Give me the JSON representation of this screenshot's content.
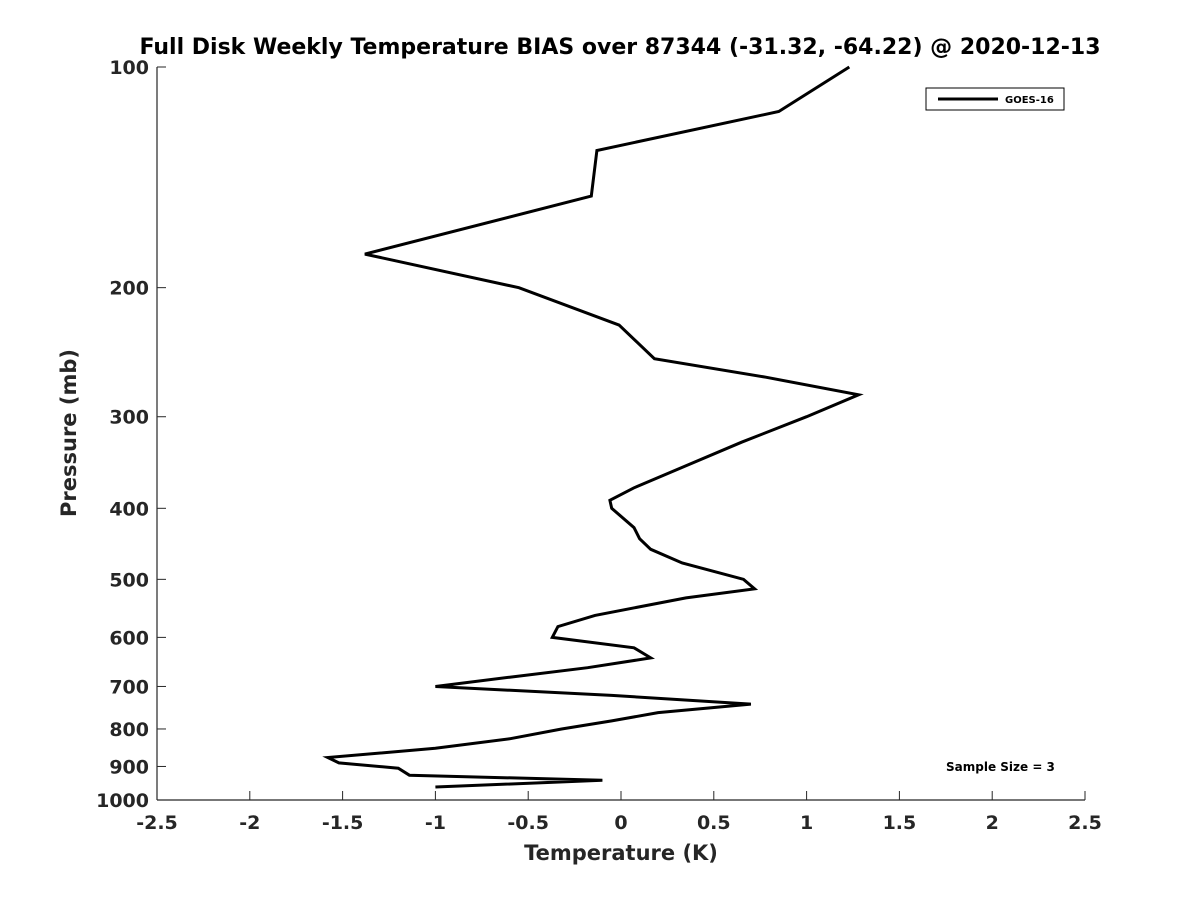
{
  "chart_data": {
    "type": "line",
    "title": "Full Disk Weekly Temperature BIAS over 87344 (-31.32, -64.22) @ 2020-12-13",
    "xlabel": "Temperature (K)",
    "ylabel": "Pressure (mb)",
    "xlim": [
      -2.5,
      2.5
    ],
    "ylim": [
      100,
      1000
    ],
    "yscale": "log",
    "yreversed": true,
    "grid": false,
    "x_ticks": [
      -2.5,
      -2,
      -1.5,
      -1,
      -0.5,
      0,
      0.5,
      1,
      1.5,
      2,
      2.5
    ],
    "x_tick_labels": [
      "-2.5",
      "-2",
      "-1.5",
      "-1",
      "-0.5",
      "0",
      "0.5",
      "1",
      "1.5",
      "2",
      "2.5"
    ],
    "y_ticks": [
      100,
      200,
      300,
      400,
      500,
      600,
      700,
      800,
      900,
      1000
    ],
    "y_tick_labels": [
      "100",
      "200",
      "300",
      "400",
      "500",
      "600",
      "700",
      "800",
      "900",
      "1000"
    ],
    "legend_position": "top-right",
    "annotation": "Sample Size = 3",
    "series": [
      {
        "name": "GOES-16",
        "color": "#000000",
        "points": [
          {
            "x": 1.23,
            "p": 100
          },
          {
            "x": 0.85,
            "p": 115
          },
          {
            "x": -0.13,
            "p": 130
          },
          {
            "x": -0.16,
            "p": 150
          },
          {
            "x": -1.38,
            "p": 180
          },
          {
            "x": -0.55,
            "p": 200
          },
          {
            "x": -0.01,
            "p": 225
          },
          {
            "x": 0.18,
            "p": 250
          },
          {
            "x": 0.78,
            "p": 265
          },
          {
            "x": 1.28,
            "p": 280
          },
          {
            "x": 1.0,
            "p": 300
          },
          {
            "x": 0.65,
            "p": 325
          },
          {
            "x": 0.35,
            "p": 350
          },
          {
            "x": 0.07,
            "p": 375
          },
          {
            "x": -0.06,
            "p": 390
          },
          {
            "x": -0.05,
            "p": 400
          },
          {
            "x": 0.07,
            "p": 425
          },
          {
            "x": 0.1,
            "p": 440
          },
          {
            "x": 0.16,
            "p": 455
          },
          {
            "x": 0.33,
            "p": 475
          },
          {
            "x": 0.66,
            "p": 500
          },
          {
            "x": 0.72,
            "p": 515
          },
          {
            "x": 0.35,
            "p": 530
          },
          {
            "x": -0.14,
            "p": 560
          },
          {
            "x": -0.34,
            "p": 580
          },
          {
            "x": -0.37,
            "p": 600
          },
          {
            "x": 0.07,
            "p": 620
          },
          {
            "x": 0.16,
            "p": 640
          },
          {
            "x": -0.18,
            "p": 660
          },
          {
            "x": -0.6,
            "p": 680
          },
          {
            "x": -1.0,
            "p": 700
          },
          {
            "x": -0.05,
            "p": 720
          },
          {
            "x": 0.7,
            "p": 740
          },
          {
            "x": 0.2,
            "p": 760
          },
          {
            "x": -0.05,
            "p": 780
          },
          {
            "x": -0.32,
            "p": 800
          },
          {
            "x": -0.6,
            "p": 825
          },
          {
            "x": -1.0,
            "p": 850
          },
          {
            "x": -1.58,
            "p": 875
          },
          {
            "x": -1.52,
            "p": 890
          },
          {
            "x": -1.2,
            "p": 905
          },
          {
            "x": -1.14,
            "p": 925
          },
          {
            "x": -0.1,
            "p": 940
          },
          {
            "x": -1.0,
            "p": 960
          }
        ]
      }
    ]
  }
}
